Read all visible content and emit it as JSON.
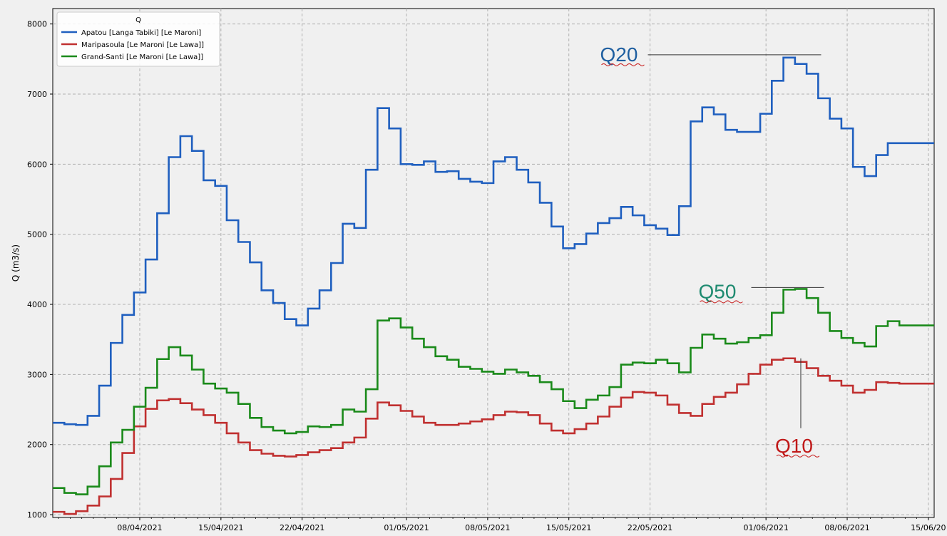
{
  "chart_data": {
    "type": "line",
    "step": true,
    "title": "",
    "xlabel": "",
    "ylabel": "Q (m3/s)",
    "ylim": [
      960,
      8220
    ],
    "yticks": [
      1000,
      2000,
      3000,
      4000,
      5000,
      6000,
      7000,
      8000
    ],
    "xlim": [
      "2021-03-31T12:00",
      "2021-06-15T12:00"
    ],
    "xticks": [
      "2021-04-08",
      "2021-04-15",
      "2021-04-22",
      "2021-05-01",
      "2021-05-08",
      "2021-05-15",
      "2021-05-22",
      "2021-06-01",
      "2021-06-08",
      "2021-06-15"
    ],
    "xticklabels": [
      "08/04/2021",
      "15/04/2021",
      "22/04/2021",
      "01/05/2021",
      "08/05/2021",
      "15/05/2021",
      "22/05/2021",
      "01/06/2021",
      "08/06/2021",
      "15/06/20"
    ],
    "grid": true,
    "legend_title": "Q",
    "legend_position": "top-left",
    "x": [
      "2021-04-01",
      "2021-04-02",
      "2021-04-03",
      "2021-04-04",
      "2021-04-05",
      "2021-04-06",
      "2021-04-07",
      "2021-04-08",
      "2021-04-09",
      "2021-04-10",
      "2021-04-11",
      "2021-04-12",
      "2021-04-13",
      "2021-04-14",
      "2021-04-15",
      "2021-04-16",
      "2021-04-17",
      "2021-04-18",
      "2021-04-19",
      "2021-04-20",
      "2021-04-21",
      "2021-04-22",
      "2021-04-23",
      "2021-04-24",
      "2021-04-25",
      "2021-04-26",
      "2021-04-27",
      "2021-04-28",
      "2021-04-29",
      "2021-04-30",
      "2021-05-01",
      "2021-05-02",
      "2021-05-03",
      "2021-05-04",
      "2021-05-05",
      "2021-05-06",
      "2021-05-07",
      "2021-05-08",
      "2021-05-09",
      "2021-05-10",
      "2021-05-11",
      "2021-05-12",
      "2021-05-13",
      "2021-05-14",
      "2021-05-15",
      "2021-05-16",
      "2021-05-17",
      "2021-05-18",
      "2021-05-19",
      "2021-05-20",
      "2021-05-21",
      "2021-05-22",
      "2021-05-23",
      "2021-05-24",
      "2021-05-25",
      "2021-05-26",
      "2021-05-27",
      "2021-05-28",
      "2021-05-29",
      "2021-05-30",
      "2021-05-31",
      "2021-06-01",
      "2021-06-02",
      "2021-06-03",
      "2021-06-04",
      "2021-06-05",
      "2021-06-06",
      "2021-06-07",
      "2021-06-08",
      "2021-06-09",
      "2021-06-10",
      "2021-06-11",
      "2021-06-12",
      "2021-06-13",
      "2021-06-14",
      "2021-06-15"
    ],
    "series": [
      {
        "name": "Apatou [Langa Tabiki] [Le Maroni]",
        "color": "#1f5fbf",
        "values": [
          2310,
          2290,
          2280,
          2410,
          2840,
          3450,
          3850,
          4170,
          4640,
          5300,
          6100,
          6400,
          6190,
          5770,
          5690,
          5200,
          4890,
          4600,
          4200,
          4020,
          3790,
          3700,
          3940,
          4200,
          4590,
          5150,
          5090,
          5920,
          6800,
          6510,
          6000,
          5990,
          6040,
          5890,
          5900,
          5790,
          5750,
          5730,
          6040,
          6100,
          5920,
          5740,
          5450,
          5110,
          4800,
          4860,
          5010,
          5160,
          5230,
          5390,
          5270,
          5130,
          5080,
          4990,
          5400,
          6610,
          6810,
          6710,
          6490,
          6460,
          6460,
          6720,
          7190,
          7520,
          7430,
          7290,
          6940,
          6650,
          6510,
          5960,
          5830,
          6130,
          6300,
          6300,
          6300,
          6300
        ]
      },
      {
        "name": "Maripasoula [Le Maroni [Le Lawa]]",
        "color": "#c03030",
        "values": [
          1040,
          1010,
          1050,
          1130,
          1260,
          1510,
          1880,
          2260,
          2510,
          2630,
          2650,
          2590,
          2500,
          2420,
          2310,
          2160,
          2030,
          1920,
          1870,
          1840,
          1830,
          1850,
          1890,
          1920,
          1950,
          2030,
          2100,
          2370,
          2600,
          2560,
          2480,
          2400,
          2310,
          2280,
          2280,
          2300,
          2330,
          2360,
          2420,
          2470,
          2460,
          2420,
          2300,
          2200,
          2160,
          2220,
          2300,
          2400,
          2540,
          2670,
          2750,
          2740,
          2700,
          2570,
          2450,
          2410,
          2580,
          2680,
          2740,
          2860,
          3010,
          3140,
          3210,
          3230,
          3180,
          3090,
          2980,
          2910,
          2840,
          2740,
          2780,
          2890,
          2880,
          2870,
          2870,
          2870
        ]
      },
      {
        "name": "Grand-Santi [Le Maroni [Le Lawa]]",
        "color": "#1a8a1a",
        "values": [
          1380,
          1310,
          1290,
          1400,
          1690,
          2030,
          2210,
          2540,
          2810,
          3220,
          3390,
          3270,
          3070,
          2870,
          2800,
          2740,
          2580,
          2380,
          2250,
          2200,
          2160,
          2180,
          2260,
          2250,
          2280,
          2500,
          2470,
          2790,
          3770,
          3800,
          3670,
          3510,
          3390,
          3260,
          3210,
          3110,
          3080,
          3040,
          3010,
          3070,
          3030,
          2980,
          2890,
          2790,
          2620,
          2520,
          2640,
          2700,
          2820,
          3140,
          3170,
          3160,
          3210,
          3160,
          3030,
          3380,
          3570,
          3510,
          3440,
          3460,
          3520,
          3560,
          3880,
          4210,
          4220,
          4090,
          3880,
          3620,
          3520,
          3450,
          3400,
          3690,
          3760,
          3700,
          3700,
          3700
        ]
      }
    ],
    "annotations": [
      {
        "text": "Q20",
        "color": "#1f5fa0",
        "x": "2021-06-06",
        "y": 7560
      },
      {
        "text": "Q50",
        "color": "#1e8a70",
        "x": "2021-06-06",
        "y": 4240
      },
      {
        "text": "Q10",
        "color": "#c01818",
        "x": "2021-06-04",
        "y": 3230
      }
    ]
  }
}
